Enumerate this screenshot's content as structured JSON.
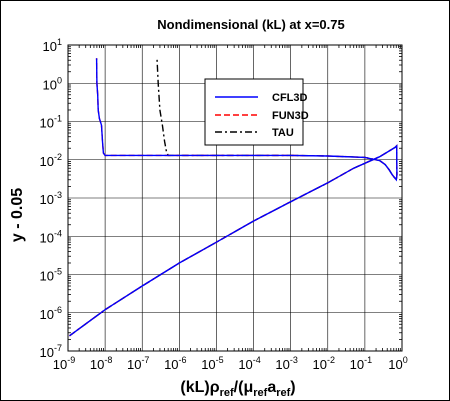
{
  "chart_data": {
    "type": "line",
    "title": "Nondimensional (kL) at x=0.75",
    "xlabel": {
      "main": "(kL)",
      "rho": "ρ",
      "rho_sub": "ref",
      "slash": "/(",
      "mu": "μ",
      "mu_sub": "ref",
      "a": "a",
      "a_sub": "ref",
      "close": ")"
    },
    "ylabel": "y - 0.05",
    "xscale": "log",
    "yscale": "log",
    "xlim": [
      1e-09,
      1
    ],
    "ylim": [
      1e-07,
      10
    ],
    "grid": true,
    "legend_position": "top-right",
    "x_ticks": [
      {
        "base": "10",
        "exp": "-9"
      },
      {
        "base": "10",
        "exp": "-8"
      },
      {
        "base": "10",
        "exp": "-7"
      },
      {
        "base": "10",
        "exp": "-6"
      },
      {
        "base": "10",
        "exp": "-5"
      },
      {
        "base": "10",
        "exp": "-4"
      },
      {
        "base": "10",
        "exp": "-3"
      },
      {
        "base": "10",
        "exp": "-2"
      },
      {
        "base": "10",
        "exp": "-1"
      },
      {
        "base": "10",
        "exp": "0"
      }
    ],
    "y_ticks": [
      {
        "base": "10",
        "exp": "-7"
      },
      {
        "base": "10",
        "exp": "-6"
      },
      {
        "base": "10",
        "exp": "-5"
      },
      {
        "base": "10",
        "exp": "-4"
      },
      {
        "base": "10",
        "exp": "-3"
      },
      {
        "base": "10",
        "exp": "-2"
      },
      {
        "base": "10",
        "exp": "-1"
      },
      {
        "base": "10",
        "exp": "0"
      },
      {
        "base": "10",
        "exp": "1"
      }
    ],
    "series": [
      {
        "name": "CFL3D",
        "color": "#0000ff",
        "dash": "solid",
        "points": [
          [
            1.1e-09,
            2.5e-07
          ],
          [
            1e-08,
            1.2e-06
          ],
          [
            1e-07,
            5e-06
          ],
          [
            1e-06,
            2e-05
          ],
          [
            1e-05,
            7e-05
          ],
          [
            0.0001,
            0.00025
          ],
          [
            0.001,
            0.0008
          ],
          [
            0.01,
            0.0025
          ],
          [
            0.05,
            0.006
          ],
          [
            0.25,
            0.012
          ],
          [
            0.5,
            0.018
          ],
          [
            0.65,
            0.021
          ],
          [
            0.72,
            0.023
          ],
          [
            0.73,
            0.004
          ],
          [
            0.7,
            0.003
          ],
          [
            0.55,
            0.004
          ],
          [
            0.45,
            0.0055
          ],
          [
            0.35,
            0.0075
          ],
          [
            0.25,
            0.0095
          ],
          [
            0.1,
            0.0115
          ],
          [
            0.01,
            0.0125
          ],
          [
            0.001,
            0.013
          ],
          [
            0.0001,
            0.013
          ],
          [
            1e-05,
            0.013
          ],
          [
            1e-06,
            0.013
          ],
          [
            1e-07,
            0.013
          ],
          [
            1e-08,
            0.013
          ],
          [
            9e-09,
            0.015
          ],
          [
            8.5e-09,
            0.03
          ],
          [
            8e-09,
            0.08
          ],
          [
            7e-09,
            0.12
          ],
          [
            6.5e-09,
            0.2
          ],
          [
            6.3e-09,
            0.5
          ],
          [
            6e-09,
            1
          ],
          [
            5.9e-09,
            4.5
          ]
        ]
      },
      {
        "name": "FUN3D",
        "color": "#ff0000",
        "dash": "dashed",
        "points": [
          [
            1.1e-09,
            2.5e-07
          ],
          [
            1e-08,
            1.2e-06
          ],
          [
            1e-07,
            5e-06
          ],
          [
            1e-06,
            2e-05
          ],
          [
            1e-05,
            7e-05
          ],
          [
            0.0001,
            0.00025
          ],
          [
            0.001,
            0.0008
          ],
          [
            0.01,
            0.0025
          ],
          [
            0.05,
            0.006
          ],
          [
            0.25,
            0.012
          ],
          [
            0.5,
            0.018
          ],
          [
            0.65,
            0.021
          ],
          [
            0.72,
            0.023
          ],
          [
            0.73,
            0.004
          ],
          [
            0.7,
            0.003
          ],
          [
            0.55,
            0.004
          ],
          [
            0.45,
            0.0055
          ],
          [
            0.35,
            0.0075
          ],
          [
            0.25,
            0.0095
          ],
          [
            0.1,
            0.0115
          ],
          [
            0.01,
            0.0125
          ],
          [
            0.001,
            0.013
          ],
          [
            0.0001,
            0.013
          ],
          [
            1e-05,
            0.013
          ],
          [
            1e-06,
            0.013
          ],
          [
            1e-07,
            0.013
          ],
          [
            1e-08,
            0.013
          ],
          [
            9e-09,
            0.015
          ],
          [
            8.5e-09,
            0.03
          ],
          [
            8e-09,
            0.08
          ],
          [
            7e-09,
            0.12
          ],
          [
            6.5e-09,
            0.2
          ],
          [
            6.3e-09,
            0.5
          ],
          [
            6e-09,
            1
          ],
          [
            5.9e-09,
            4.5
          ]
        ]
      },
      {
        "name": "TAU",
        "color": "#000000",
        "dash": "dashdot",
        "points": [
          [
            1.1e-09,
            2.5e-07
          ],
          [
            1e-08,
            1.2e-06
          ],
          [
            1e-07,
            5e-06
          ],
          [
            1e-06,
            2e-05
          ],
          [
            1e-05,
            7e-05
          ],
          [
            0.0001,
            0.00025
          ],
          [
            0.001,
            0.0008
          ],
          [
            0.01,
            0.0025
          ],
          [
            0.05,
            0.006
          ],
          [
            0.25,
            0.012
          ],
          [
            0.5,
            0.018
          ],
          [
            0.65,
            0.021
          ],
          [
            0.72,
            0.023
          ],
          [
            0.73,
            0.004
          ],
          [
            0.7,
            0.003
          ],
          [
            0.55,
            0.004
          ],
          [
            0.45,
            0.0055
          ],
          [
            0.35,
            0.0075
          ],
          [
            0.25,
            0.0095
          ],
          [
            0.1,
            0.0115
          ],
          [
            0.01,
            0.0125
          ],
          [
            0.001,
            0.013
          ],
          [
            0.0001,
            0.013
          ],
          [
            1e-05,
            0.013
          ],
          [
            1e-06,
            0.013
          ],
          [
            5e-07,
            0.013
          ],
          [
            4.5e-07,
            0.016
          ],
          [
            4e-07,
            0.03
          ],
          [
            3.5e-07,
            0.08
          ],
          [
            3e-07,
            0.2
          ],
          [
            2.7e-07,
            1
          ],
          [
            2.5e-07,
            4.5
          ]
        ]
      }
    ]
  }
}
